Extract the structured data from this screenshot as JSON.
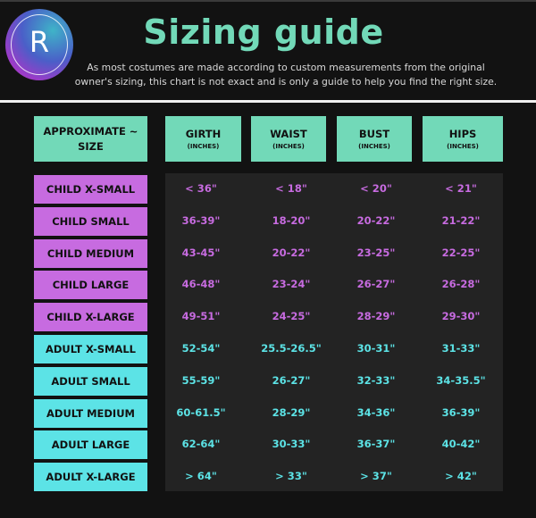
{
  "header": {
    "logo_letter": "R",
    "title": "Sizing guide",
    "subtitle_line1": "As most costumes are made according to custom measurements from the original",
    "subtitle_line2": "owner's sizing, this chart is not exact and is only a guide to help you find the right size."
  },
  "colors": {
    "header_box": "#72d9b8",
    "child": "#c76be0",
    "adult": "#5ce3e6",
    "panel": "#232323",
    "background": "#121212"
  },
  "table": {
    "size_header": [
      "APPROXIMATE ~",
      "SIZE"
    ],
    "columns": [
      {
        "label": "GIRTH",
        "unit": "(INCHES)"
      },
      {
        "label": "WAIST",
        "unit": "(INCHES)"
      },
      {
        "label": "BUST",
        "unit": "(INCHES)"
      },
      {
        "label": "HIPS",
        "unit": "(INCHES)"
      }
    ],
    "rows": [
      {
        "size": "CHILD X-SMALL",
        "group": "child",
        "values": [
          "< 36\"",
          "< 18\"",
          "< 20\"",
          "< 21\""
        ]
      },
      {
        "size": "CHILD SMALL",
        "group": "child",
        "values": [
          "36-39\"",
          "18-20\"",
          "20-22\"",
          "21-22\""
        ]
      },
      {
        "size": "CHILD MEDIUM",
        "group": "child",
        "values": [
          "43-45\"",
          "20-22\"",
          "23-25\"",
          "22-25\""
        ]
      },
      {
        "size": "CHILD LARGE",
        "group": "child",
        "values": [
          "46-48\"",
          "23-24\"",
          "26-27\"",
          "26-28\""
        ]
      },
      {
        "size": "CHILD X-LARGE",
        "group": "child",
        "values": [
          "49-51\"",
          "24-25\"",
          "28-29\"",
          "29-30\""
        ]
      },
      {
        "size": "ADULT X-SMALL",
        "group": "adult",
        "values": [
          "52-54\"",
          "25.5-26.5\"",
          "30-31\"",
          "31-33\""
        ]
      },
      {
        "size": "ADULT SMALL",
        "group": "adult",
        "values": [
          "55-59\"",
          "26-27\"",
          "32-33\"",
          "34-35.5\""
        ]
      },
      {
        "size": "ADULT MEDIUM",
        "group": "adult",
        "values": [
          "60-61.5\"",
          "28-29\"",
          "34-36\"",
          "36-39\""
        ]
      },
      {
        "size": "ADULT LARGE",
        "group": "adult",
        "values": [
          "62-64\"",
          "30-33\"",
          "36-37\"",
          "40-42\""
        ]
      },
      {
        "size": "ADULT X-LARGE",
        "group": "adult",
        "values": [
          "> 64\"",
          "> 33\"",
          "> 37\"",
          "> 42\""
        ]
      }
    ]
  }
}
